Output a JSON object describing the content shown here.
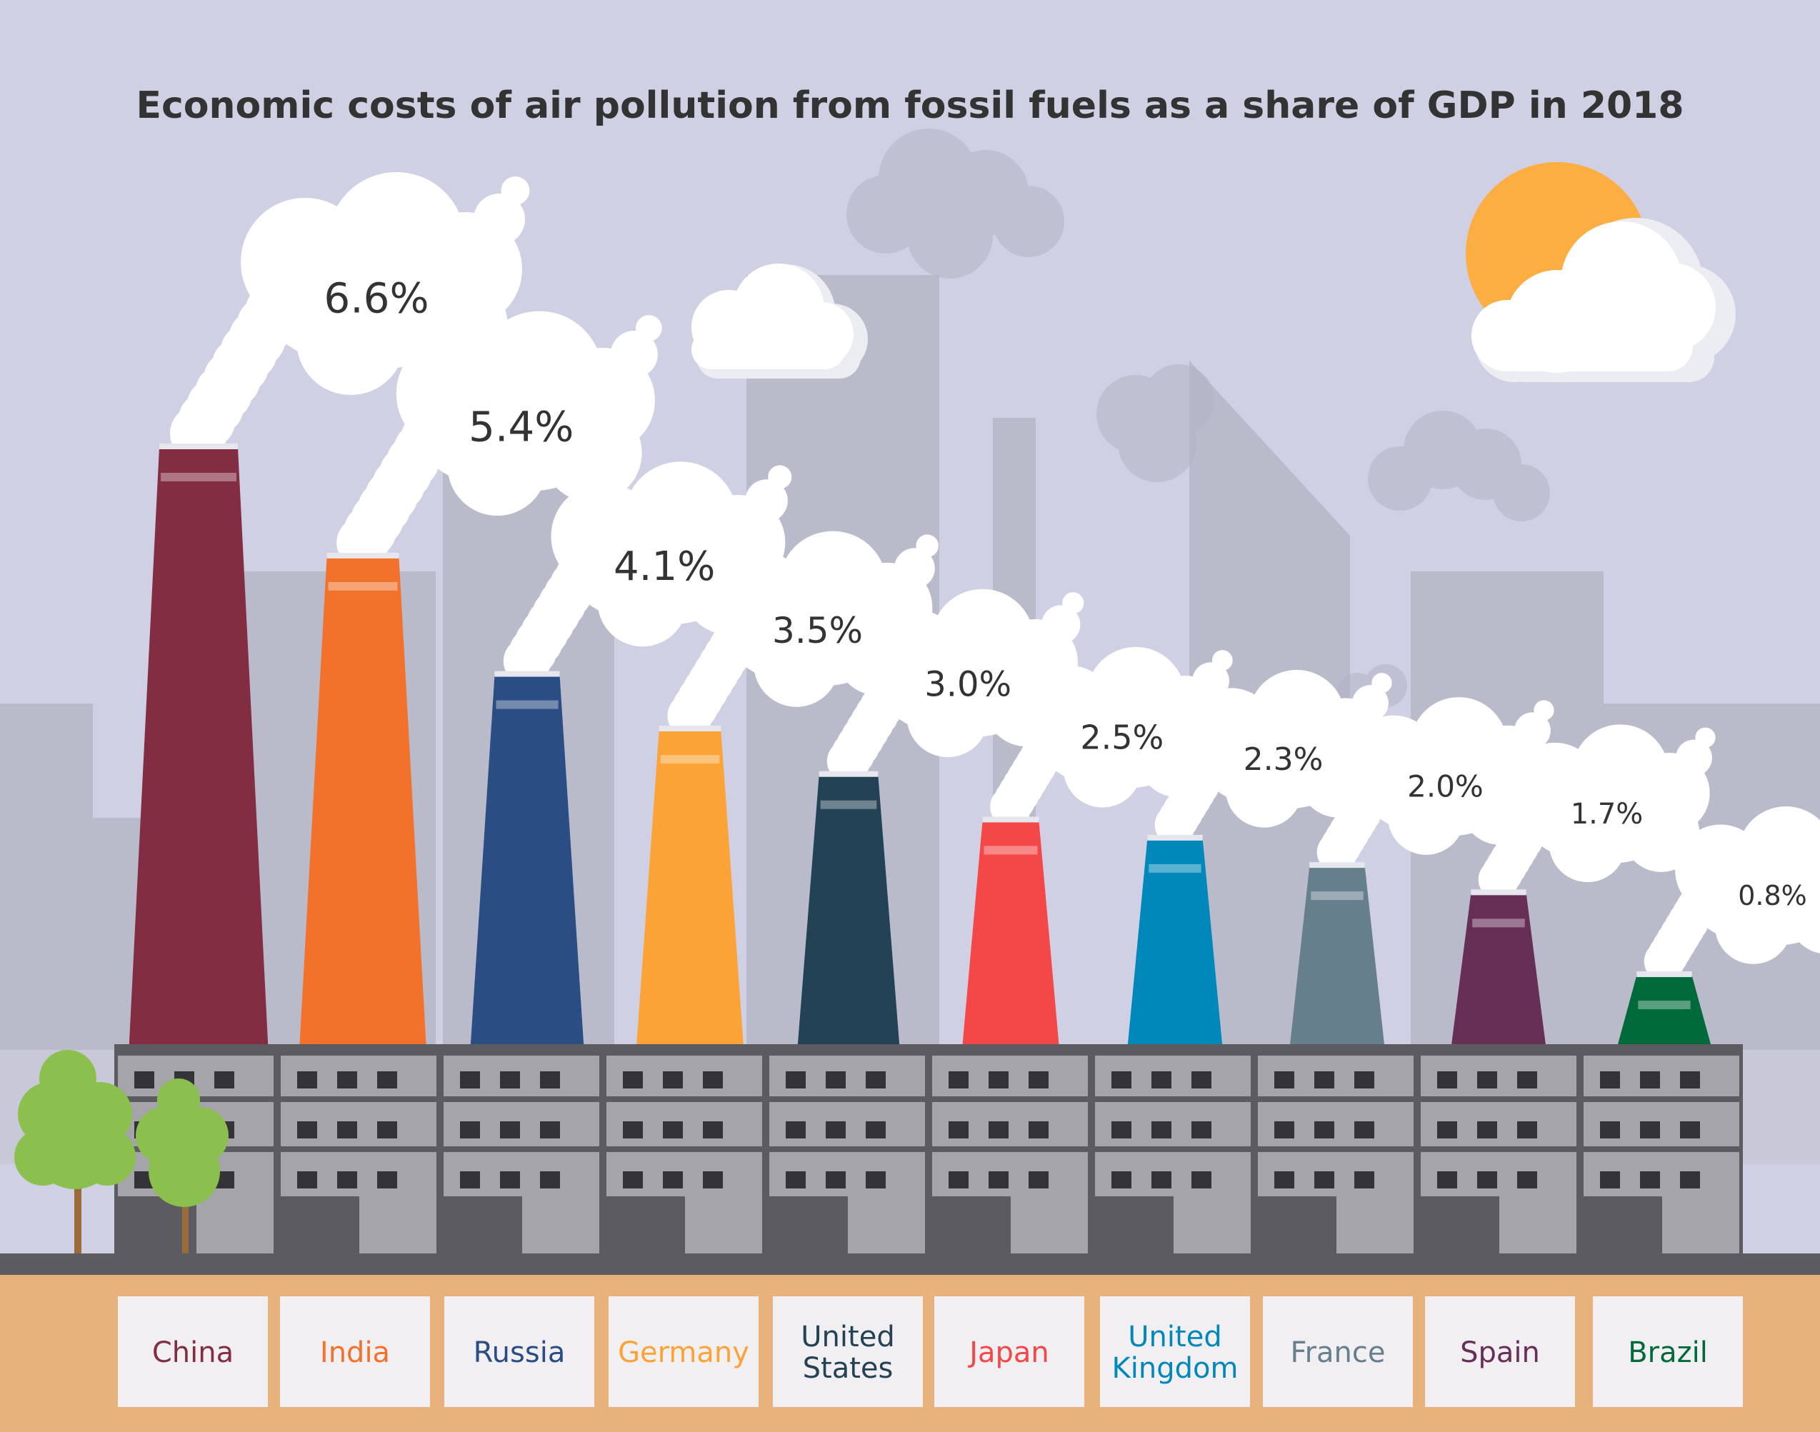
{
  "chart_data": {
    "type": "bar",
    "title": "Economic costs of air pollution from fossil fuels as a share of GDP in 2018",
    "xlabel": "",
    "ylabel": "",
    "ylim": [
      0,
      7
    ],
    "categories": [
      "China",
      "India",
      "Russia",
      "Germany",
      "United States",
      "Japan",
      "United Kingdom",
      "France",
      "Spain",
      "Brazil"
    ],
    "category_lines": [
      [
        "China"
      ],
      [
        "India"
      ],
      [
        "Russia"
      ],
      [
        "Germany"
      ],
      [
        "United",
        "States"
      ],
      [
        "Japan"
      ],
      [
        "United",
        "Kingdom"
      ],
      [
        "France"
      ],
      [
        "Spain"
      ],
      [
        "Brazil"
      ]
    ],
    "values": [
      6.6,
      5.4,
      4.1,
      3.5,
      3.0,
      2.5,
      2.3,
      2.0,
      1.7,
      0.8
    ],
    "value_labels": [
      "6.6%",
      "5.4%",
      "4.1%",
      "3.5%",
      "3.0%",
      "2.5%",
      "2.3%",
      "2.0%",
      "1.7%",
      "0.8%"
    ],
    "colors": [
      "#832d42",
      "#f2722c",
      "#2a4d83",
      "#fba336",
      "#234255",
      "#f44848",
      "#0088ba",
      "#667f8c",
      "#672f56",
      "#006a3a"
    ],
    "grid": false,
    "legend": "none"
  },
  "scene_colors": {
    "sky": "#d0d0e4",
    "skyline": "#b9bbcb",
    "building": "#5c5b5f",
    "building_light": "#a5a5a9",
    "ground": "#e8b27c",
    "label_box": "#f2eff3",
    "sun": "#fcae42",
    "smoke": "#ffffff",
    "tree": "#8bbf4e",
    "trunk": "#9c6b3a"
  },
  "icons": [
    "factory-chimney-icon",
    "smoke-cloud-icon",
    "sun-icon",
    "cloud-icon",
    "tree-icon"
  ]
}
